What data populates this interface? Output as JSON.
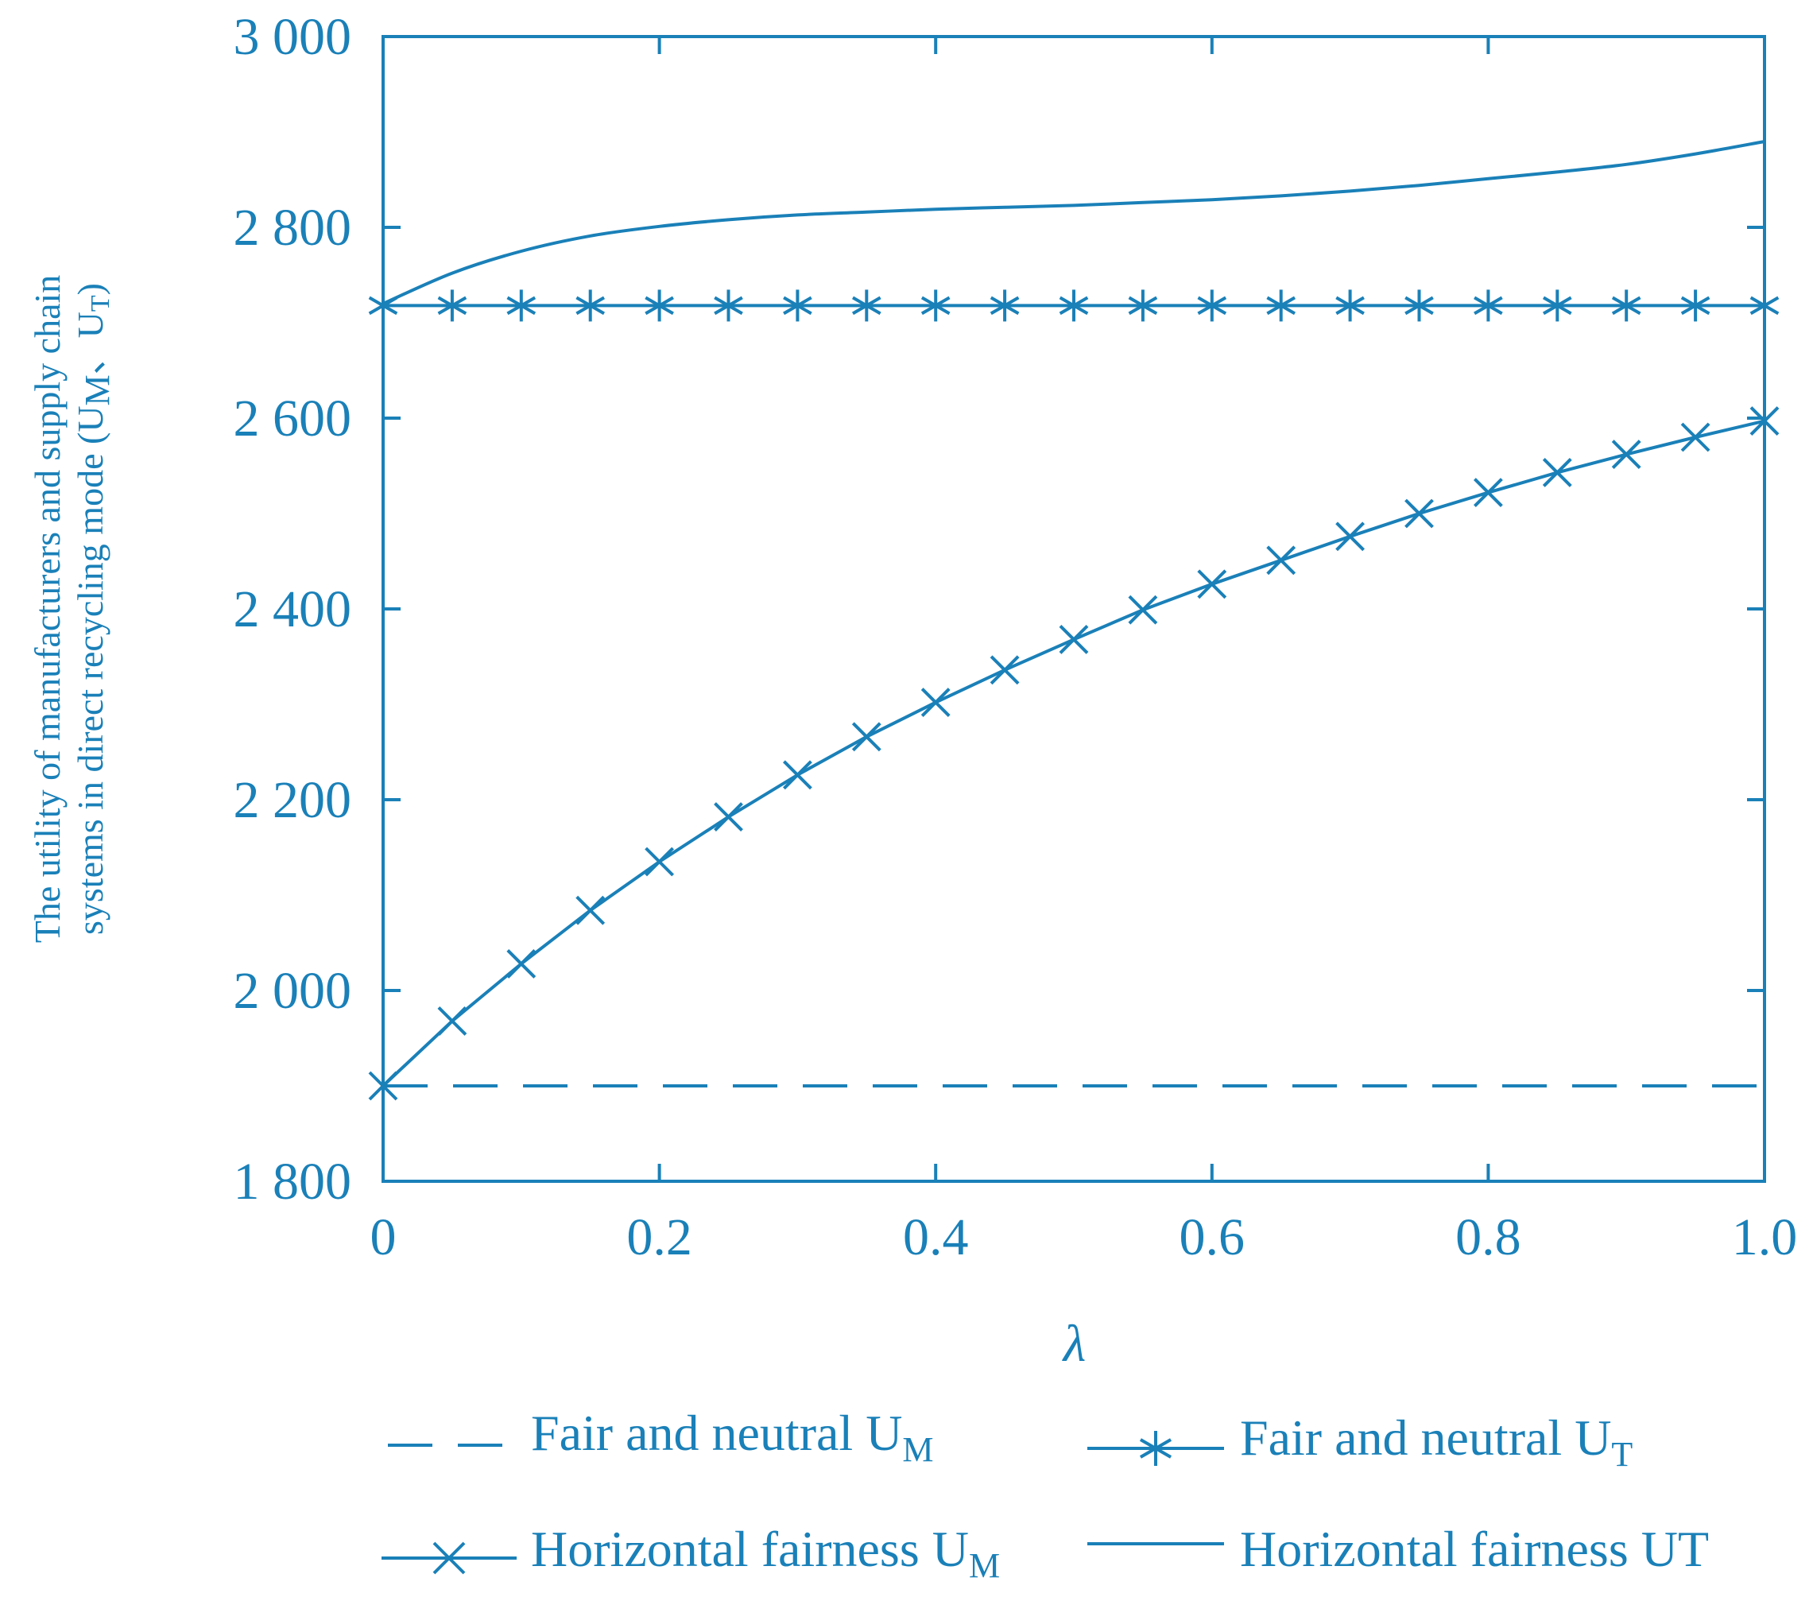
{
  "colors": {
    "line": "#1a80b8",
    "background": "#ffffff"
  },
  "chart_data": {
    "type": "line",
    "xlabel": "λ",
    "ylabel_line1": "The utility of  manufacturers and supply chain",
    "ylabel_line2": "systems in direct recycling mode  (U",
    "ylabel_sub1": "M",
    "ylabel_sep": "、U",
    "ylabel_sub2": "T",
    "ylabel_close": ")",
    "xlim": [
      0,
      1
    ],
    "ylim": [
      1800,
      3000
    ],
    "x_ticks": [
      0,
      0.2,
      0.4,
      0.6,
      0.8,
      1.0
    ],
    "x_tick_labels": [
      "0",
      "0.2",
      "0.4",
      "0.6",
      "0.8",
      "1.0"
    ],
    "y_ticks": [
      1800,
      2000,
      2200,
      2400,
      2600,
      2800,
      3000
    ],
    "y_tick_labels": [
      "1 800",
      "2 000",
      "2 200",
      "2 400",
      "2 600",
      "2 800",
      "3 000"
    ],
    "x": [
      0,
      0.05,
      0.1,
      0.15,
      0.2,
      0.25,
      0.3,
      0.35,
      0.4,
      0.45,
      0.5,
      0.55,
      0.6,
      0.65,
      0.7,
      0.75,
      0.8,
      0.85,
      0.9,
      0.95,
      1.0
    ],
    "series": [
      {
        "name": "Fair and neutral U_M",
        "style": "dashed",
        "marker": "none",
        "values": [
          1900,
          1900,
          1900,
          1900,
          1900,
          1900,
          1900,
          1900,
          1900,
          1900,
          1900,
          1900,
          1900,
          1900,
          1900,
          1900,
          1900,
          1900,
          1900,
          1900,
          1900
        ]
      },
      {
        "name": "Fair and neutral U_T",
        "style": "solid",
        "marker": "asterisk",
        "values": [
          2718,
          2718,
          2718,
          2718,
          2718,
          2718,
          2718,
          2718,
          2718,
          2718,
          2718,
          2718,
          2718,
          2718,
          2718,
          2718,
          2718,
          2718,
          2718,
          2718,
          2718
        ]
      },
      {
        "name": "Horizontal fairness U_M",
        "style": "solid",
        "marker": "x",
        "values": [
          1900,
          1968,
          2028,
          2084,
          2135,
          2182,
          2226,
          2266,
          2302,
          2336,
          2368,
          2399,
          2426,
          2451,
          2476,
          2500,
          2522,
          2543,
          2562,
          2580,
          2597
        ]
      },
      {
        "name": "Horizontal fairness UT",
        "style": "solid",
        "marker": "none",
        "values": [
          2720,
          2752,
          2775,
          2791,
          2801,
          2808,
          2813,
          2816,
          2819,
          2821,
          2823,
          2826,
          2829,
          2833,
          2838,
          2844,
          2851,
          2858,
          2866,
          2877,
          2890
        ]
      }
    ]
  },
  "legend": {
    "items": [
      {
        "label": "Fair and neutral U",
        "sub": "M"
      },
      {
        "label": "Fair and neutral  U",
        "sub": "T"
      },
      {
        "label": "Horizontal fairness U",
        "sub": "M"
      },
      {
        "label": "Horizontal fairness  UT",
        "sub": ""
      }
    ]
  }
}
